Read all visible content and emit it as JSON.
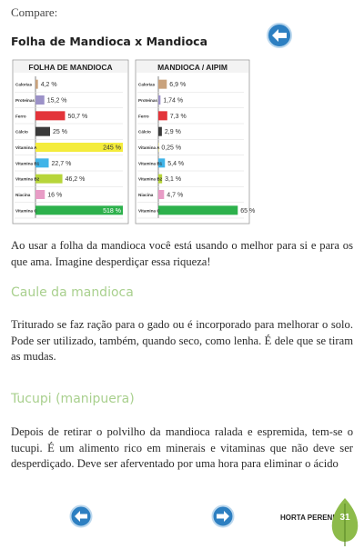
{
  "intro": "Compare:",
  "heading": "Folha de Mandioca x Mandioca",
  "chart_data": [
    {
      "type": "bar",
      "orientation": "horizontal",
      "title": "FOLHA DE MANDIOCA",
      "categories": [
        "Calorias",
        "Proteínas",
        "Ferro",
        "Cálcio",
        "Vitamina A",
        "Vitamina B1",
        "Vitamina B2",
        "Niacina",
        "Vitamina C"
      ],
      "values": [
        4.2,
        15.2,
        50.7,
        25,
        245,
        22.7,
        46.2,
        16,
        518
      ],
      "value_labels": [
        "4,2 %",
        "15,2 %",
        "50,7 %",
        "25 %",
        "245 %",
        "22,7 %",
        "46,2 %",
        "16 %",
        "518 %"
      ],
      "colors": [
        "#c9a27c",
        "#9c92c8",
        "#e3343a",
        "#3a3a3a",
        "#f4ec3c",
        "#40b4e8",
        "#b7d53a",
        "#e89cc6",
        "#2db14c"
      ],
      "xlim": [
        0,
        150
      ]
    },
    {
      "type": "bar",
      "orientation": "horizontal",
      "title": "MANDIOCA / AIPIM",
      "categories": [
        "Calorias",
        "Proteínas",
        "Ferro",
        "Cálcio",
        "Vitamina A",
        "Vitamina B1",
        "Vitamina B2",
        "Niacina",
        "Vitamina C"
      ],
      "values": [
        6.9,
        1.74,
        7.3,
        2.9,
        0.25,
        5.4,
        3.1,
        4.7,
        65
      ],
      "value_labels": [
        "6,9 %",
        "1,74 %",
        "7,3 %",
        "2,9 %",
        "0,25 %",
        "5,4 %",
        "3,1 %",
        "4,7 %",
        "65 %"
      ],
      "colors": [
        "#c9a27c",
        "#9c92c8",
        "#e3343a",
        "#3a3a3a",
        "#f4ec3c",
        "#40b4e8",
        "#b7d53a",
        "#e89cc6",
        "#2db14c"
      ],
      "xlim": [
        0,
        70
      ]
    }
  ],
  "paragraphs": [
    "Ao usar a folha da mandioca você está usando o melhor para si e para os que ama. Imagine desperdiçar essa riqueza!",
    "Triturado se faz ração para o gado ou é incorporado para melhorar o solo. Pode ser utilizado, também, quando seco, como lenha. É dele que se tiram as mudas.",
    "Depois de retirar o polvilho da mandioca ralada e espremida, tem-se o tucupi. É um alimento rico em minerais e vitaminas que não deve ser desperdiçado. Deve ser aferventado por uma hora para eliminar o ácido"
  ],
  "sections": [
    "Caule da mandioca",
    "Tucupi (manipuera)"
  ],
  "footer": {
    "label": "HORTA PERENE",
    "page": "31"
  }
}
